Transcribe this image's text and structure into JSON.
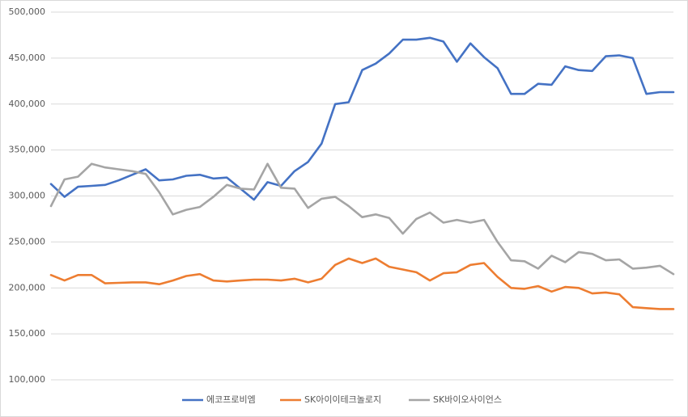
{
  "chart_data": {
    "type": "line",
    "categories": [
      null,
      null,
      null,
      null,
      null,
      null,
      null,
      null,
      null,
      null,
      null,
      null,
      null,
      null,
      null,
      null,
      null,
      null,
      null,
      null,
      null,
      null,
      null,
      null,
      null,
      null,
      null,
      null,
      null,
      null,
      null,
      null,
      null,
      null,
      null,
      null,
      null,
      null,
      null,
      null,
      null,
      null,
      null,
      null,
      null,
      null,
      null
    ],
    "series": [
      {
        "name": "에코프로비엠",
        "color": "#4472c4",
        "values": [
          313000,
          299000,
          310000,
          311000,
          312000,
          317000,
          323000,
          329000,
          317000,
          318000,
          322000,
          323000,
          319000,
          320000,
          308000,
          296000,
          315000,
          311000,
          327000,
          337000,
          357000,
          400000,
          402000,
          437000,
          444000,
          455000,
          470000,
          470000,
          472000,
          468000,
          446000,
          466000,
          451000,
          439000,
          411000,
          411000,
          422000,
          421000,
          441000,
          437000,
          436000,
          452000,
          453000,
          450000,
          411000,
          413000,
          413000
        ]
      },
      {
        "name": "SK아이이테크놀로지",
        "color": "#ed7d31",
        "values": [
          214000,
          208000,
          214000,
          214000,
          205000,
          205500,
          206000,
          206000,
          204000,
          208000,
          213000,
          215000,
          208000,
          207000,
          208000,
          209000,
          209000,
          208000,
          210000,
          206000,
          210000,
          225000,
          232000,
          227000,
          232000,
          223000,
          220000,
          217000,
          208000,
          216000,
          217000,
          225000,
          227000,
          212000,
          200000,
          199000,
          202000,
          196000,
          201000,
          200000,
          194000,
          195000,
          193000,
          179000,
          178000,
          177000,
          177000
        ]
      },
      {
        "name": "SK바이오사이언스",
        "color": "#a5a5a5",
        "values": [
          289000,
          318000,
          321000,
          335000,
          331000,
          329000,
          327000,
          324000,
          304000,
          280000,
          285000,
          288000,
          299000,
          312000,
          308000,
          307000,
          335000,
          309000,
          308000,
          287000,
          297000,
          299000,
          289000,
          277000,
          280000,
          276000,
          259000,
          275000,
          282000,
          271000,
          274000,
          271000,
          274000,
          250000,
          230000,
          229000,
          221000,
          235000,
          228000,
          239000,
          237000,
          230000,
          231000,
          221000,
          222000,
          224000,
          215000
        ]
      }
    ],
    "ylim": [
      100000,
      500000
    ],
    "yticks": [
      {
        "value": 100000,
        "label": "100,000"
      },
      {
        "value": 150000,
        "label": "150,000"
      },
      {
        "value": 200000,
        "label": "200,000"
      },
      {
        "value": 250000,
        "label": "250,000"
      },
      {
        "value": 300000,
        "label": "300,000"
      },
      {
        "value": 350000,
        "label": "350,000"
      },
      {
        "value": 400000,
        "label": "400,000"
      },
      {
        "value": 450000,
        "label": "450,000"
      },
      {
        "value": 500000,
        "label": "500,000"
      }
    ],
    "grid": true,
    "legend": "bottom"
  }
}
